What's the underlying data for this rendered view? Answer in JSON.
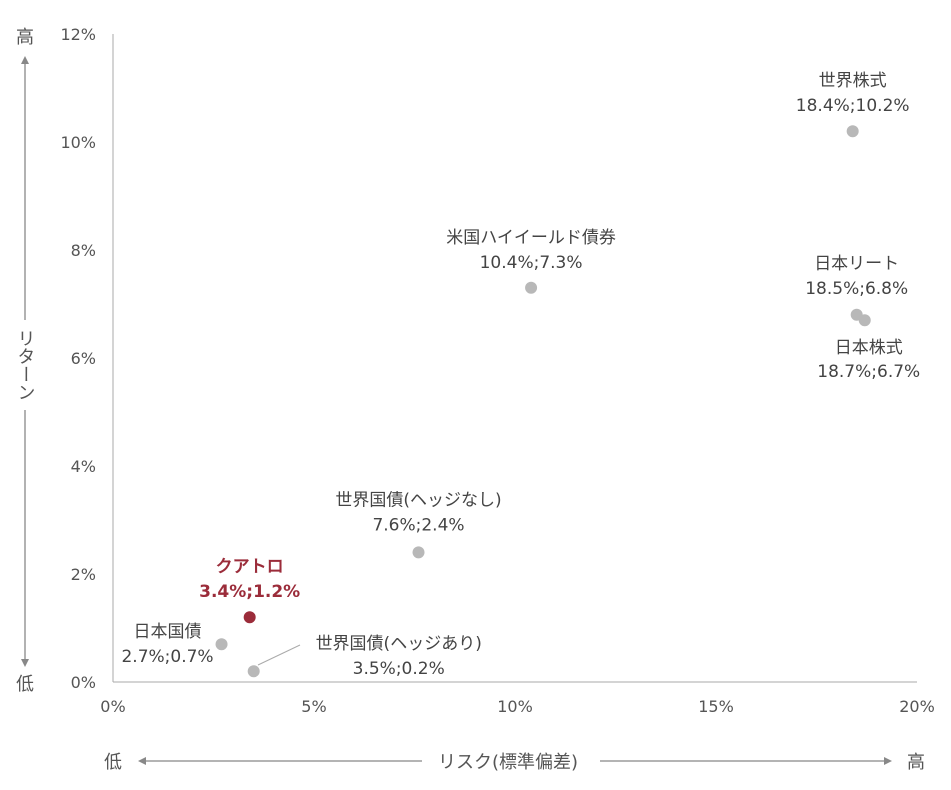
{
  "chart_data": {
    "type": "scatter",
    "title": "",
    "xlabel": "リスク(標準偏差)",
    "ylabel": "リターン",
    "x_low_label": "低",
    "x_high_label": "高",
    "y_low_label": "低",
    "y_high_label": "高",
    "xlim": [
      0,
      20
    ],
    "ylim": [
      0,
      12
    ],
    "x_ticks": [
      "0%",
      "5%",
      "10%",
      "15%",
      "20%"
    ],
    "y_ticks": [
      "0%",
      "2%",
      "4%",
      "6%",
      "8%",
      "10%",
      "12%"
    ],
    "grid": false,
    "colors": {
      "normal": "#b8b8b8",
      "highlight": "#9b2c3a",
      "axis": "#888888"
    },
    "points": [
      {
        "name": "世界株式",
        "value_label": "18.4%;10.2%",
        "x": 18.4,
        "y": 10.2,
        "highlight": false
      },
      {
        "name": "米国ハイイールド債券",
        "value_label": "10.4%;7.3%",
        "x": 10.4,
        "y": 7.3,
        "highlight": false
      },
      {
        "name": "日本リート",
        "value_label": "18.5%;6.8%",
        "x": 18.5,
        "y": 6.8,
        "highlight": false
      },
      {
        "name": "日本株式",
        "value_label": "18.7%;6.7%",
        "x": 18.7,
        "y": 6.7,
        "highlight": false
      },
      {
        "name": "世界国債(ヘッジなし)",
        "value_label": "7.6%;2.4%",
        "x": 7.6,
        "y": 2.4,
        "highlight": false
      },
      {
        "name": "クアトロ",
        "value_label": "3.4%;1.2%",
        "x": 3.4,
        "y": 1.2,
        "highlight": true
      },
      {
        "name": "日本国債",
        "value_label": "2.7%;0.7%",
        "x": 2.7,
        "y": 0.7,
        "highlight": false
      },
      {
        "name": "世界国債(ヘッジあり)",
        "value_label": "3.5%;0.2%",
        "x": 3.5,
        "y": 0.2,
        "highlight": false
      }
    ]
  }
}
